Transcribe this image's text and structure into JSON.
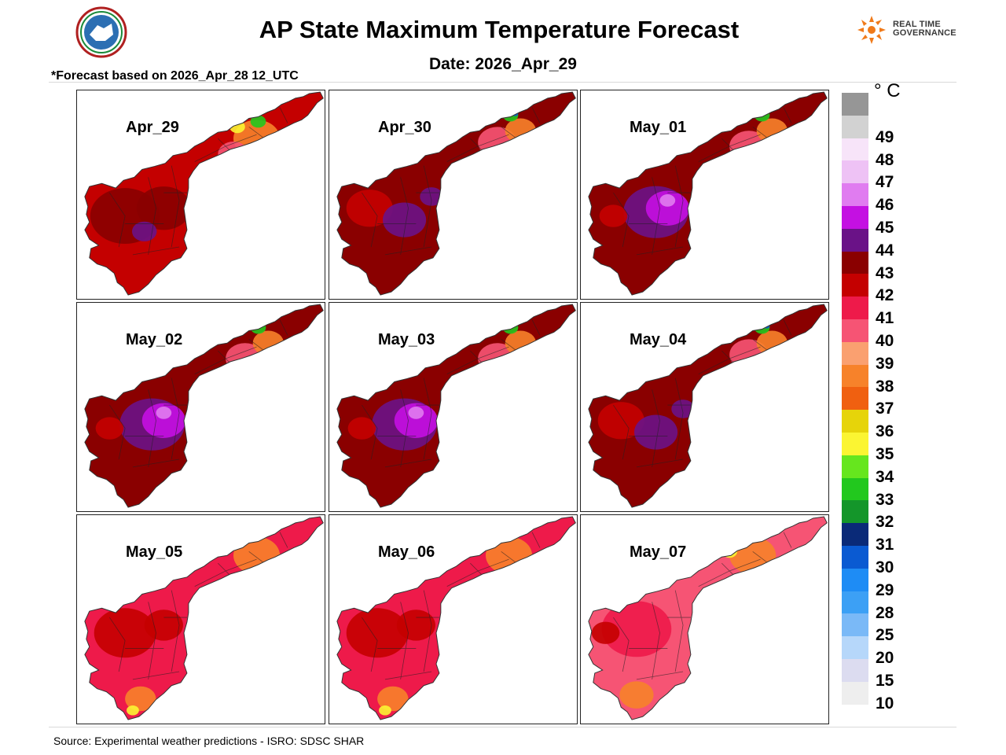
{
  "header": {
    "title": "AP State Maximum Temperature Forecast",
    "date_line": "Date: 2026_Apr_29",
    "basis_note": "*Forecast based on 2026_Apr_28 12_UTC",
    "right_logo_text_1": "REAL TIME",
    "right_logo_text_2": "GOVERNANCE"
  },
  "panels": [
    {
      "label": "Apr_29",
      "scheme": "hot"
    },
    {
      "label": "Apr_30",
      "scheme": "hotter"
    },
    {
      "label": "May_01",
      "scheme": "hottest"
    },
    {
      "label": "May_02",
      "scheme": "hottest"
    },
    {
      "label": "May_03",
      "scheme": "hottest"
    },
    {
      "label": "May_04",
      "scheme": "hotter"
    },
    {
      "label": "May_05",
      "scheme": "warm"
    },
    {
      "label": "May_06",
      "scheme": "warm"
    },
    {
      "label": "May_07",
      "scheme": "mild"
    }
  ],
  "legend": {
    "unit": "° C",
    "levels": [
      {
        "label": "",
        "color": "#969696"
      },
      {
        "label": "49",
        "color": "#d2d2d2"
      },
      {
        "label": "48",
        "color": "#f7e4f9"
      },
      {
        "label": "47",
        "color": "#eec2f5"
      },
      {
        "label": "46",
        "color": "#e07cf0"
      },
      {
        "label": "45",
        "color": "#c410e2"
      },
      {
        "label": "44",
        "color": "#6a1287"
      },
      {
        "label": "43",
        "color": "#8a0000"
      },
      {
        "label": "42",
        "color": "#c40000"
      },
      {
        "label": "41",
        "color": "#ee1a4a"
      },
      {
        "label": "40",
        "color": "#f65474"
      },
      {
        "label": "39",
        "color": "#faa070"
      },
      {
        "label": "38",
        "color": "#f7822a"
      },
      {
        "label": "37",
        "color": "#f06010"
      },
      {
        "label": "36",
        "color": "#e6d40a"
      },
      {
        "label": "35",
        "color": "#fbf532"
      },
      {
        "label": "34",
        "color": "#66e61e"
      },
      {
        "label": "33",
        "color": "#22c81e"
      },
      {
        "label": "32",
        "color": "#14962a"
      },
      {
        "label": "31",
        "color": "#0a2a78"
      },
      {
        "label": "30",
        "color": "#0a5ad2"
      },
      {
        "label": "29",
        "color": "#1e8cf5"
      },
      {
        "label": "28",
        "color": "#3ca0f5"
      },
      {
        "label": "25",
        "color": "#7ab9f7"
      },
      {
        "label": "20",
        "color": "#b6d7fa"
      },
      {
        "label": "15",
        "color": "#dcdcf0"
      },
      {
        "label": "10",
        "color": "#eeeeee"
      }
    ]
  },
  "footer": {
    "source": "Source: Experimental weather predictions - ISRO: SDSC SHAR"
  }
}
